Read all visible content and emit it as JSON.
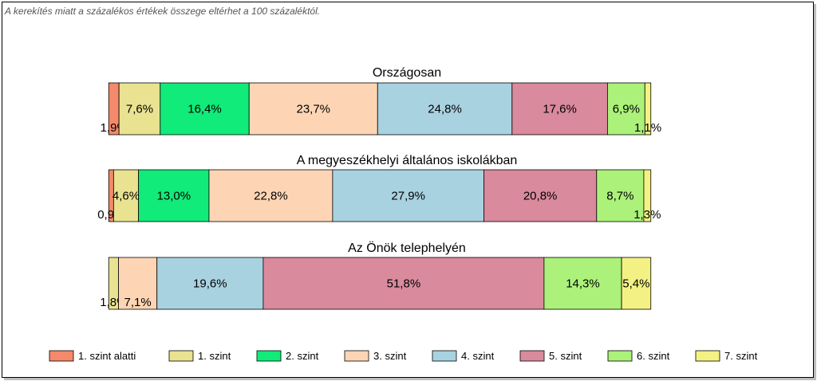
{
  "note": "A kerekítés miatt a  százalékos értékek összege eltérhet a 100 százaléktól.",
  "chart_data": {
    "type": "bar",
    "orientation": "horizontal-stacked-100",
    "legend_position": "bottom",
    "series": [
      {
        "name": "1. szint alatti",
        "color": "#f4896b"
      },
      {
        "name": "1. szint",
        "color": "#e9e291"
      },
      {
        "name": "2. szint",
        "color": "#10eb79"
      },
      {
        "name": "3. szint",
        "color": "#fdd5b4"
      },
      {
        "name": "4. szint",
        "color": "#a9d2e0"
      },
      {
        "name": "5. szint",
        "color": "#d98a9c"
      },
      {
        "name": "6. szint",
        "color": "#abf17a"
      },
      {
        "name": "7. szint",
        "color": "#f3f183"
      }
    ],
    "bars": [
      {
        "title": "Országosan",
        "values": [
          1.9,
          7.6,
          16.4,
          23.7,
          24.8,
          17.6,
          6.9,
          1.1
        ],
        "labels": [
          "1,9%",
          "7,6%",
          "16,4%",
          "23,7%",
          "24,8%",
          "17,6%",
          "6,9%",
          "1,1%"
        ]
      },
      {
        "title": "A megyeszékhelyi általános iskolákban",
        "values": [
          0.9,
          4.6,
          13.0,
          22.8,
          27.9,
          20.8,
          8.7,
          1.3
        ],
        "labels": [
          "0,9%",
          "4,6%",
          "13,0%",
          "22,8%",
          "27,9%",
          "20,8%",
          "8,7%",
          "1,3%"
        ]
      },
      {
        "title": "Az Önök telephelyén",
        "values": [
          0,
          1.8,
          0,
          7.1,
          19.6,
          51.8,
          14.3,
          5.4
        ],
        "labels": [
          "",
          "1,8%",
          "",
          "7,1%",
          "19,6%",
          "51,8%",
          "14,3%",
          "5,4%"
        ]
      }
    ]
  }
}
